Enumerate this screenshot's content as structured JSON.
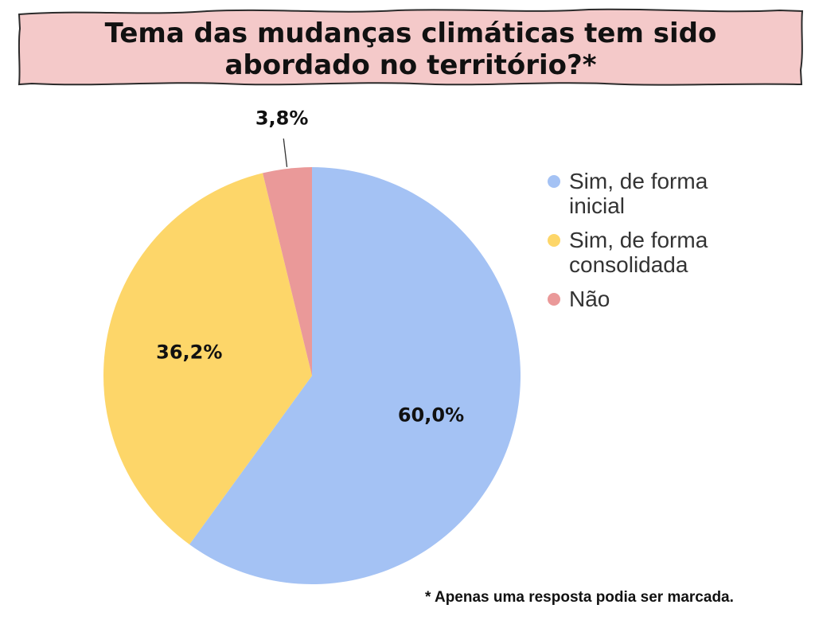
{
  "title": {
    "line1": "Tema das mudanças climáticas tem sido",
    "line2": "abordado no território?*"
  },
  "footnote": "* Apenas uma resposta podia ser marcada.",
  "colors": {
    "banner_fill": "#f4c9c9",
    "banner_stroke": "#2b2b2b",
    "slice_1": "#a4c2f4",
    "slice_2": "#fdd669",
    "slice_3": "#ea9999"
  },
  "chart_data": {
    "type": "pie",
    "title": "Tema das mudanças climáticas tem sido abordado no território?*",
    "legend_position": "right",
    "slices": [
      {
        "label": "Sim, de forma inicial",
        "value": 60.0,
        "display": "60,0%",
        "color": "#a4c2f4"
      },
      {
        "label": "Sim, de forma consolidada",
        "value": 36.2,
        "display": "36,2%",
        "color": "#fdd669"
      },
      {
        "label": "Não",
        "value": 3.8,
        "display": "3,8%",
        "color": "#ea9999"
      }
    ]
  }
}
